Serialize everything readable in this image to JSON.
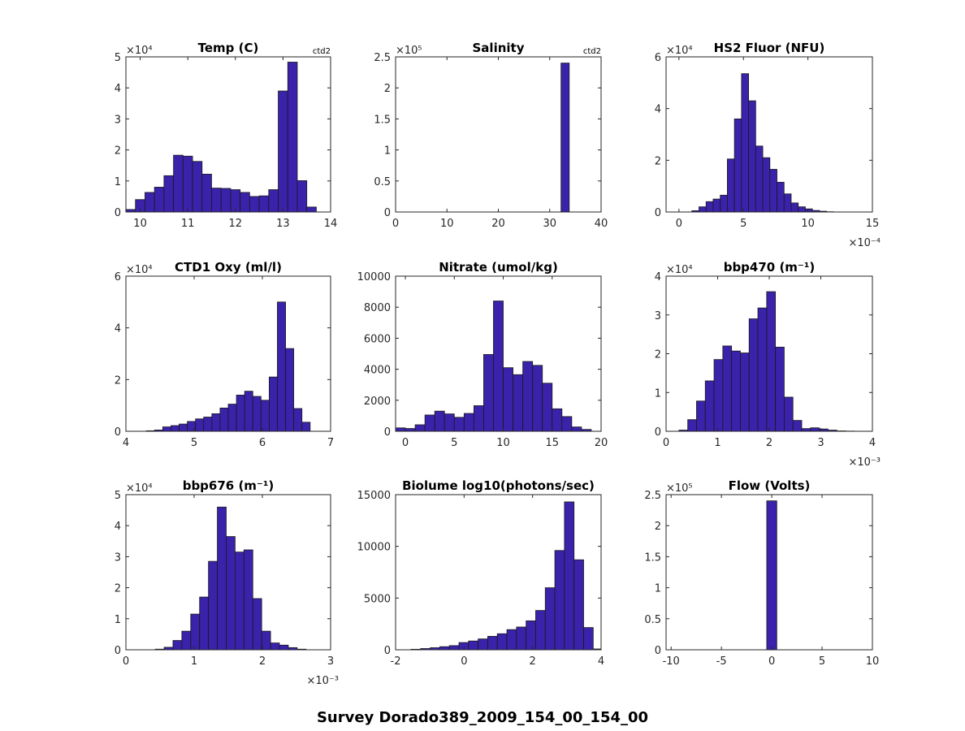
{
  "figure": {
    "suptitle": "Survey Dorado389_2009_154_00_154_00",
    "bar_color": "#3a22aa"
  },
  "chart_data": [
    {
      "type": "bar",
      "title": "Temp (C)",
      "tag": "ctd2",
      "x_ticks": [
        "10",
        "11",
        "12",
        "13",
        "14"
      ],
      "x_tick_values": [
        10,
        11,
        12,
        13,
        14
      ],
      "xlim": [
        9.7,
        14
      ],
      "y_ticks": [
        "0",
        "1",
        "2",
        "3",
        "4",
        "5"
      ],
      "y_tick_values": [
        0,
        1,
        2,
        3,
        4,
        5
      ],
      "ylim": [
        0,
        5
      ],
      "y_exponent": "×10⁴",
      "x_exponent": "",
      "bins": [
        [
          9.7,
          9.9,
          0.08
        ],
        [
          9.9,
          10.1,
          0.4
        ],
        [
          10.1,
          10.3,
          0.63
        ],
        [
          10.3,
          10.5,
          0.8
        ],
        [
          10.5,
          10.7,
          1.17
        ],
        [
          10.7,
          10.9,
          1.83
        ],
        [
          10.9,
          11.1,
          1.8
        ],
        [
          11.1,
          11.3,
          1.63
        ],
        [
          11.3,
          11.5,
          1.22
        ],
        [
          11.5,
          11.7,
          0.77
        ],
        [
          11.7,
          11.9,
          0.76
        ],
        [
          11.9,
          12.1,
          0.72
        ],
        [
          12.1,
          12.3,
          0.63
        ],
        [
          12.3,
          12.5,
          0.5
        ],
        [
          12.5,
          12.7,
          0.52
        ],
        [
          12.7,
          12.9,
          0.72
        ],
        [
          12.9,
          13.1,
          3.9
        ],
        [
          13.1,
          13.3,
          4.83
        ],
        [
          13.3,
          13.5,
          1.01
        ],
        [
          13.5,
          13.7,
          0.16
        ]
      ]
    },
    {
      "type": "bar",
      "title": "Salinity",
      "tag": "ctd2",
      "x_ticks": [
        "0",
        "10",
        "20",
        "30",
        "40"
      ],
      "x_tick_values": [
        0,
        10,
        20,
        30,
        40
      ],
      "xlim": [
        0,
        40
      ],
      "y_ticks": [
        "0",
        "0.5",
        "1",
        "1.5",
        "2",
        "2.5"
      ],
      "y_tick_values": [
        0,
        0.5,
        1,
        1.5,
        2,
        2.5
      ],
      "ylim": [
        0,
        2.5
      ],
      "y_exponent": "×10⁵",
      "x_exponent": "",
      "bins": [
        [
          32.2,
          33.8,
          2.4
        ]
      ]
    },
    {
      "type": "bar",
      "title": "HS2 Fluor (NFU)",
      "tag": "",
      "x_ticks": [
        "0",
        "5",
        "10",
        "15"
      ],
      "x_tick_values": [
        0,
        5,
        10,
        15
      ],
      "xlim": [
        -1,
        15
      ],
      "y_ticks": [
        "0",
        "2",
        "4",
        "6"
      ],
      "y_tick_values": [
        0,
        2,
        4,
        6
      ],
      "ylim": [
        0,
        6
      ],
      "y_exponent": "×10⁴",
      "x_exponent": "×10⁻⁴",
      "bins": [
        [
          1.0,
          1.55,
          0.05
        ],
        [
          1.55,
          2.1,
          0.2
        ],
        [
          2.1,
          2.65,
          0.4
        ],
        [
          2.65,
          3.2,
          0.5
        ],
        [
          3.2,
          3.75,
          0.65
        ],
        [
          3.75,
          4.3,
          2.05
        ],
        [
          4.3,
          4.85,
          3.6
        ],
        [
          4.85,
          5.4,
          5.35
        ],
        [
          5.4,
          5.95,
          4.3
        ],
        [
          5.95,
          6.5,
          2.55
        ],
        [
          6.5,
          7.05,
          2.1
        ],
        [
          7.05,
          7.6,
          1.65
        ],
        [
          7.6,
          8.15,
          1.15
        ],
        [
          8.15,
          8.7,
          0.7
        ],
        [
          8.7,
          9.25,
          0.35
        ],
        [
          9.25,
          9.8,
          0.2
        ],
        [
          9.8,
          10.35,
          0.12
        ],
        [
          10.35,
          10.9,
          0.06
        ],
        [
          10.9,
          11.45,
          0.03
        ],
        [
          11.45,
          12.0,
          0.01
        ]
      ]
    },
    {
      "type": "bar",
      "title": "CTD1 Oxy (ml/l)",
      "tag": "",
      "x_ticks": [
        "4",
        "5",
        "6",
        "7"
      ],
      "x_tick_values": [
        4,
        5,
        6,
        7
      ],
      "xlim": [
        4,
        7
      ],
      "y_ticks": [
        "0",
        "2",
        "4",
        "6"
      ],
      "y_tick_values": [
        0,
        2,
        4,
        6
      ],
      "ylim": [
        0,
        6
      ],
      "y_exponent": "×10⁴",
      "x_exponent": "",
      "bins": [
        [
          4.3,
          4.42,
          0.02
        ],
        [
          4.42,
          4.54,
          0.05
        ],
        [
          4.54,
          4.66,
          0.17
        ],
        [
          4.66,
          4.78,
          0.22
        ],
        [
          4.78,
          4.9,
          0.28
        ],
        [
          4.9,
          5.02,
          0.38
        ],
        [
          5.02,
          5.14,
          0.48
        ],
        [
          5.14,
          5.26,
          0.55
        ],
        [
          5.26,
          5.38,
          0.68
        ],
        [
          5.38,
          5.5,
          0.9
        ],
        [
          5.5,
          5.62,
          1.05
        ],
        [
          5.62,
          5.74,
          1.4
        ],
        [
          5.74,
          5.86,
          1.55
        ],
        [
          5.86,
          5.98,
          1.35
        ],
        [
          5.98,
          6.1,
          1.2
        ],
        [
          6.1,
          6.22,
          2.1
        ],
        [
          6.22,
          6.34,
          5.0
        ],
        [
          6.34,
          6.46,
          3.2
        ],
        [
          6.46,
          6.58,
          0.88
        ],
        [
          6.58,
          6.7,
          0.35
        ]
      ]
    },
    {
      "type": "bar",
      "title": "Nitrate (umol/kg)",
      "tag": "",
      "x_ticks": [
        "0",
        "5",
        "10",
        "15",
        "20"
      ],
      "x_tick_values": [
        0,
        5,
        10,
        15,
        20
      ],
      "xlim": [
        -1,
        20
      ],
      "y_ticks": [
        "0",
        "2000",
        "4000",
        "6000",
        "8000",
        "10000"
      ],
      "y_tick_values": [
        0,
        2000,
        4000,
        6000,
        8000,
        10000
      ],
      "ylim": [
        0,
        10000
      ],
      "y_exponent": "",
      "x_exponent": "",
      "bins": [
        [
          -1,
          0,
          220
        ],
        [
          0,
          1,
          180
        ],
        [
          1,
          2,
          420
        ],
        [
          2,
          3,
          1050
        ],
        [
          3,
          4,
          1300
        ],
        [
          4,
          5,
          1120
        ],
        [
          5,
          6,
          900
        ],
        [
          6,
          7,
          1150
        ],
        [
          7,
          8,
          1650
        ],
        [
          8,
          9,
          4950
        ],
        [
          9,
          10,
          8400
        ],
        [
          10,
          11,
          4100
        ],
        [
          11,
          12,
          3650
        ],
        [
          12,
          13,
          4500
        ],
        [
          13,
          14,
          4250
        ],
        [
          14,
          15,
          3100
        ],
        [
          15,
          16,
          1450
        ],
        [
          16,
          17,
          950
        ],
        [
          17,
          18,
          280
        ],
        [
          18,
          19,
          120
        ]
      ]
    },
    {
      "type": "bar",
      "title": "bbp470 (m⁻¹)",
      "tag": "",
      "x_ticks": [
        "0",
        "1",
        "2",
        "3",
        "4"
      ],
      "x_tick_values": [
        0,
        1,
        2,
        3,
        4
      ],
      "xlim": [
        0,
        4
      ],
      "y_ticks": [
        "0",
        "1",
        "2",
        "3",
        "4"
      ],
      "y_tick_values": [
        0,
        1,
        2,
        3,
        4
      ],
      "ylim": [
        0,
        4
      ],
      "y_exponent": "×10⁴",
      "x_exponent": "×10⁻³",
      "bins": [
        [
          0.25,
          0.42,
          0.03
        ],
        [
          0.42,
          0.59,
          0.3
        ],
        [
          0.59,
          0.76,
          0.78
        ],
        [
          0.76,
          0.93,
          1.3
        ],
        [
          0.93,
          1.1,
          1.85
        ],
        [
          1.1,
          1.27,
          2.2
        ],
        [
          1.27,
          1.44,
          2.07
        ],
        [
          1.44,
          1.61,
          2.02
        ],
        [
          1.61,
          1.78,
          2.9
        ],
        [
          1.78,
          1.95,
          3.18
        ],
        [
          1.95,
          2.12,
          3.6
        ],
        [
          2.12,
          2.29,
          2.17
        ],
        [
          2.29,
          2.46,
          0.88
        ],
        [
          2.46,
          2.63,
          0.28
        ],
        [
          2.63,
          2.8,
          0.07
        ],
        [
          2.8,
          2.97,
          0.09
        ],
        [
          2.97,
          3.14,
          0.06
        ],
        [
          3.14,
          3.31,
          0.03
        ],
        [
          3.31,
          3.48,
          0.01
        ],
        [
          3.48,
          3.65,
          0.005
        ]
      ]
    },
    {
      "type": "bar",
      "title": "bbp676 (m⁻¹)",
      "tag": "",
      "x_ticks": [
        "0",
        "1",
        "2",
        "3"
      ],
      "x_tick_values": [
        0,
        1,
        2,
        3
      ],
      "xlim": [
        0,
        3
      ],
      "y_ticks": [
        "0",
        "1",
        "2",
        "3",
        "4",
        "5"
      ],
      "y_tick_values": [
        0,
        1,
        2,
        3,
        4,
        5
      ],
      "ylim": [
        0,
        5
      ],
      "y_exponent": "×10⁴",
      "x_exponent": "×10⁻³",
      "bins": [
        [
          0.43,
          0.56,
          0.02
        ],
        [
          0.56,
          0.69,
          0.08
        ],
        [
          0.69,
          0.82,
          0.3
        ],
        [
          0.82,
          0.95,
          0.6
        ],
        [
          0.95,
          1.08,
          1.15
        ],
        [
          1.08,
          1.21,
          1.7
        ],
        [
          1.21,
          1.34,
          2.85
        ],
        [
          1.34,
          1.47,
          4.6
        ],
        [
          1.47,
          1.6,
          3.65
        ],
        [
          1.6,
          1.73,
          3.15
        ],
        [
          1.73,
          1.86,
          3.22
        ],
        [
          1.86,
          1.99,
          1.65
        ],
        [
          1.99,
          2.12,
          0.6
        ],
        [
          2.12,
          2.25,
          0.22
        ],
        [
          2.25,
          2.38,
          0.15
        ],
        [
          2.38,
          2.51,
          0.07
        ],
        [
          2.51,
          2.64,
          0.02
        ]
      ]
    },
    {
      "type": "bar",
      "title": "Biolume log10(photons/sec)",
      "tag": "",
      "x_ticks": [
        "-2",
        "0",
        "2",
        "4"
      ],
      "x_tick_values": [
        -2,
        0,
        2,
        4
      ],
      "xlim": [
        -2,
        4
      ],
      "y_ticks": [
        "0",
        "5000",
        "10000",
        "15000"
      ],
      "y_tick_values": [
        0,
        5000,
        10000,
        15000
      ],
      "ylim": [
        0,
        15000
      ],
      "y_exponent": "",
      "x_exponent": "",
      "bins": [
        [
          -1.55,
          -1.27,
          50
        ],
        [
          -1.27,
          -0.99,
          120
        ],
        [
          -0.99,
          -0.71,
          200
        ],
        [
          -0.71,
          -0.43,
          300
        ],
        [
          -0.43,
          -0.15,
          400
        ],
        [
          -0.15,
          0.13,
          700
        ],
        [
          0.13,
          0.41,
          850
        ],
        [
          0.41,
          0.69,
          1050
        ],
        [
          0.69,
          0.97,
          1300
        ],
        [
          0.97,
          1.25,
          1550
        ],
        [
          1.25,
          1.53,
          1950
        ],
        [
          1.53,
          1.81,
          2200
        ],
        [
          1.81,
          2.09,
          2800
        ],
        [
          2.09,
          2.37,
          3800
        ],
        [
          2.37,
          2.65,
          6000
        ],
        [
          2.65,
          2.93,
          9600
        ],
        [
          2.93,
          3.21,
          14300
        ],
        [
          3.21,
          3.49,
          8700
        ],
        [
          3.49,
          3.77,
          2150
        ],
        [
          3.77,
          4.05,
          80
        ]
      ]
    },
    {
      "type": "bar",
      "title": "Flow (Volts)",
      "tag": "",
      "x_ticks": [
        "-10",
        "-5",
        "0",
        "5",
        "10"
      ],
      "x_tick_values": [
        -10,
        -5,
        0,
        5,
        10
      ],
      "xlim": [
        -10.5,
        10
      ],
      "y_ticks": [
        "0",
        "0.5",
        "1",
        "1.5",
        "2",
        "2.5"
      ],
      "y_tick_values": [
        0,
        0.5,
        1,
        1.5,
        2,
        2.5
      ],
      "ylim": [
        0,
        2.5
      ],
      "y_exponent": "×10⁵",
      "x_exponent": "",
      "bins": [
        [
          -0.5,
          0.5,
          2.4
        ]
      ]
    }
  ]
}
